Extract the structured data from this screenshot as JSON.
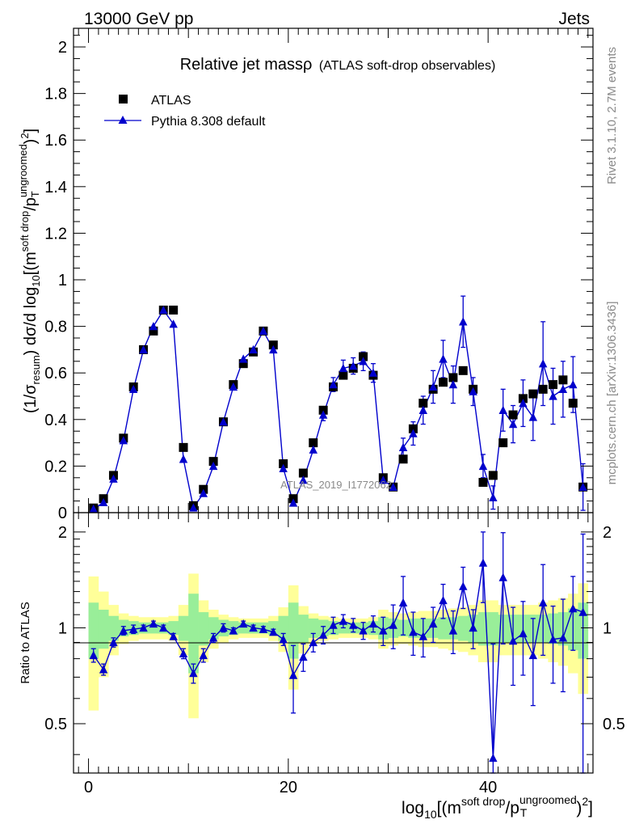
{
  "header": {
    "energy_label": "13000 GeV pp",
    "category_label": "Jets"
  },
  "side_labels": {
    "rivet": "Rivet 3.1.10,  2.7M events",
    "mcplots": "mcplots.cern.ch [arXiv:1306.3436]"
  },
  "watermark": "ATLAS_2019_I1772062",
  "colors": {
    "data": "#000000",
    "mc": "#0000cc",
    "band_1sigma": "#99ee99",
    "band_2sigma": "#ffff99"
  },
  "chart_data": [
    {
      "type": "scatter",
      "title": "Relative jet massρ",
      "subtitle": "(ATLAS soft-drop observables)",
      "ylabel": "(1/σresum) dσ/d log10[(msoft drop/pTungroomed)2]",
      "xlim": [
        -1.5,
        50.5
      ],
      "ylim": [
        0,
        2.08
      ],
      "yticks": [
        0,
        0.2,
        0.4,
        0.6,
        0.8,
        1,
        1.2,
        1.4,
        1.6,
        1.8,
        2
      ],
      "yticklabels": [
        "0",
        "0.2",
        "0.4",
        "0.6",
        "0.8",
        "1",
        "1.2",
        "1.4",
        "1.6",
        "1.8",
        "2"
      ],
      "legend": [
        "ATLAS",
        "Pythia 8.308 default"
      ],
      "legend_position": "top-left",
      "series": [
        {
          "name": "ATLAS",
          "x": [
            0.5,
            1.5,
            2.5,
            3.5,
            4.5,
            5.5,
            6.5,
            7.5,
            8.5,
            9.5,
            10.5,
            11.5,
            12.5,
            13.5,
            14.5,
            15.5,
            16.5,
            17.5,
            18.5,
            19.5,
            20.5,
            21.5,
            22.5,
            23.5,
            24.5,
            25.5,
            26.5,
            27.5,
            28.5,
            29.5,
            30.5,
            31.5,
            32.5,
            33.5,
            34.5,
            35.5,
            36.5,
            37.5,
            38.5,
            39.5,
            40.5,
            41.5,
            42.5,
            43.5,
            44.5,
            45.5,
            46.5,
            47.5,
            48.5,
            49.5
          ],
          "y": [
            0.02,
            0.06,
            0.16,
            0.32,
            0.54,
            0.7,
            0.78,
            0.87,
            0.87,
            0.28,
            0.03,
            0.1,
            0.22,
            0.39,
            0.55,
            0.64,
            0.69,
            0.78,
            0.72,
            0.21,
            0.06,
            0.17,
            0.3,
            0.44,
            0.54,
            0.59,
            0.62,
            0.67,
            0.59,
            0.15,
            0.11,
            0.23,
            0.36,
            0.47,
            0.53,
            0.56,
            0.58,
            0.61,
            0.53,
            0.13,
            0.16,
            0.3,
            0.42,
            0.49,
            0.51,
            0.53,
            0.55,
            0.57,
            0.47,
            0.11
          ]
        },
        {
          "name": "Pythia 8.308 default",
          "x": [
            0.5,
            1.5,
            2.5,
            3.5,
            4.5,
            5.5,
            6.5,
            7.5,
            8.5,
            9.5,
            10.5,
            11.5,
            12.5,
            13.5,
            14.5,
            15.5,
            16.5,
            17.5,
            18.5,
            19.5,
            20.5,
            21.5,
            22.5,
            23.5,
            24.5,
            25.5,
            26.5,
            27.5,
            28.5,
            29.5,
            30.5,
            31.5,
            32.5,
            33.5,
            34.5,
            35.5,
            36.5,
            37.5,
            38.5,
            39.5,
            40.5,
            41.5,
            42.5,
            43.5,
            44.5,
            45.5,
            46.5,
            47.5,
            48.5,
            49.5
          ],
          "y": [
            0.016,
            0.044,
            0.145,
            0.31,
            0.53,
            0.7,
            0.8,
            0.87,
            0.81,
            0.23,
            0.021,
            0.083,
            0.2,
            0.39,
            0.54,
            0.66,
            0.7,
            0.78,
            0.7,
            0.19,
            0.042,
            0.14,
            0.27,
            0.42,
            0.55,
            0.62,
            0.63,
            0.65,
            0.6,
            0.14,
            0.11,
            0.28,
            0.34,
            0.44,
            0.54,
            0.66,
            0.55,
            0.82,
            0.52,
            0.2,
            0.065,
            0.44,
            0.38,
            0.47,
            0.41,
            0.64,
            0.5,
            0.53,
            0.55,
            0.11
          ],
          "yerr": [
            0.005,
            0.006,
            0.01,
            0.015,
            0.02,
            0.02,
            0.02,
            0.02,
            0.02,
            0.012,
            0.005,
            0.008,
            0.01,
            0.015,
            0.02,
            0.02,
            0.02,
            0.02,
            0.02,
            0.012,
            0.006,
            0.01,
            0.015,
            0.025,
            0.03,
            0.035,
            0.035,
            0.04,
            0.04,
            0.02,
            0.02,
            0.04,
            0.05,
            0.06,
            0.07,
            0.08,
            0.08,
            0.11,
            0.06,
            0.05,
            0.05,
            0.09,
            0.08,
            0.1,
            0.1,
            0.18,
            0.12,
            0.12,
            0.12,
            0.1
          ]
        }
      ]
    },
    {
      "type": "scatter",
      "ylabel": "Ratio to ATLAS",
      "xlabel": "log10[(msoft drop/pTungroomed)2]",
      "xlim": [
        -1.5,
        50.5
      ],
      "ylim": [
        0.35,
        2.3
      ],
      "yticks": [
        0.5,
        1,
        2
      ],
      "yticklabels": [
        "0.5",
        "1",
        "2"
      ],
      "xticks": [
        0,
        20,
        40
      ],
      "xticklabels": [
        "0",
        "20",
        "40"
      ],
      "reference_line": 1,
      "bands": {
        "x": [
          0.5,
          1.5,
          2.5,
          3.5,
          4.5,
          5.5,
          6.5,
          7.5,
          8.5,
          9.5,
          10.5,
          11.5,
          12.5,
          13.5,
          14.5,
          15.5,
          16.5,
          17.5,
          18.5,
          19.5,
          20.5,
          21.5,
          22.5,
          23.5,
          24.5,
          25.5,
          26.5,
          27.5,
          28.5,
          29.5,
          30.5,
          31.5,
          32.5,
          33.5,
          34.5,
          35.5,
          36.5,
          37.5,
          38.5,
          39.5,
          40.5,
          41.5,
          42.5,
          43.5,
          44.5,
          45.5,
          46.5,
          47.5,
          48.5,
          49.5
        ],
        "inner_half_width": [
          0.2,
          0.14,
          0.09,
          0.06,
          0.05,
          0.04,
          0.04,
          0.04,
          0.05,
          0.09,
          0.28,
          0.12,
          0.08,
          0.06,
          0.05,
          0.04,
          0.04,
          0.04,
          0.05,
          0.09,
          0.2,
          0.1,
          0.07,
          0.06,
          0.05,
          0.04,
          0.04,
          0.04,
          0.05,
          0.08,
          0.07,
          0.06,
          0.07,
          0.07,
          0.07,
          0.08,
          0.08,
          0.09,
          0.1,
          0.12,
          0.12,
          0.1,
          0.1,
          0.1,
          0.1,
          0.1,
          0.11,
          0.12,
          0.15,
          0.2
        ],
        "outer_half_width": [
          0.45,
          0.3,
          0.18,
          0.11,
          0.09,
          0.08,
          0.08,
          0.08,
          0.09,
          0.18,
          0.48,
          0.22,
          0.14,
          0.1,
          0.08,
          0.07,
          0.07,
          0.07,
          0.09,
          0.16,
          0.36,
          0.17,
          0.11,
          0.09,
          0.08,
          0.07,
          0.07,
          0.07,
          0.08,
          0.14,
          0.12,
          0.11,
          0.12,
          0.13,
          0.13,
          0.14,
          0.15,
          0.16,
          0.18,
          0.22,
          0.22,
          0.18,
          0.18,
          0.18,
          0.18,
          0.2,
          0.22,
          0.24,
          0.28,
          0.38
        ]
      },
      "series": [
        {
          "name": "Pythia 8.308 default",
          "x": [
            0.5,
            1.5,
            2.5,
            3.5,
            4.5,
            5.5,
            6.5,
            7.5,
            8.5,
            9.5,
            10.5,
            11.5,
            12.5,
            13.5,
            14.5,
            15.5,
            16.5,
            17.5,
            18.5,
            19.5,
            20.5,
            21.5,
            22.5,
            23.5,
            24.5,
            25.5,
            26.5,
            27.5,
            28.5,
            29.5,
            30.5,
            31.5,
            32.5,
            33.5,
            34.5,
            35.5,
            36.5,
            37.5,
            38.5,
            39.5,
            40.5,
            41.5,
            42.5,
            43.5,
            44.5,
            45.5,
            46.5,
            47.5,
            48.5,
            49.5
          ],
          "y": [
            0.82,
            0.74,
            0.9,
            0.98,
            0.99,
            1.0,
            1.03,
            1.0,
            0.94,
            0.83,
            0.72,
            0.82,
            0.93,
            1.0,
            0.98,
            1.03,
            1.0,
            0.99,
            0.97,
            0.92,
            0.71,
            0.81,
            0.9,
            0.95,
            1.02,
            1.05,
            1.02,
            0.98,
            1.03,
            0.98,
            1.02,
            1.2,
            0.97,
            0.94,
            1.03,
            1.22,
            0.98,
            1.35,
            1.0,
            1.6,
            0.39,
            1.44,
            0.91,
            0.96,
            0.82,
            1.2,
            0.92,
            0.93,
            1.15,
            1.12
          ],
          "yerr": [
            0.04,
            0.03,
            0.03,
            0.03,
            0.03,
            0.02,
            0.02,
            0.02,
            0.02,
            0.03,
            0.05,
            0.04,
            0.03,
            0.03,
            0.02,
            0.02,
            0.02,
            0.02,
            0.02,
            0.04,
            0.17,
            0.08,
            0.06,
            0.06,
            0.06,
            0.05,
            0.05,
            0.06,
            0.06,
            0.1,
            0.16,
            0.25,
            0.15,
            0.13,
            0.13,
            0.15,
            0.15,
            0.2,
            0.14,
            0.4,
            0.5,
            0.55,
            0.25,
            0.25,
            0.25,
            0.38,
            0.25,
            0.3,
            0.3,
            0.85
          ]
        }
      ]
    }
  ]
}
